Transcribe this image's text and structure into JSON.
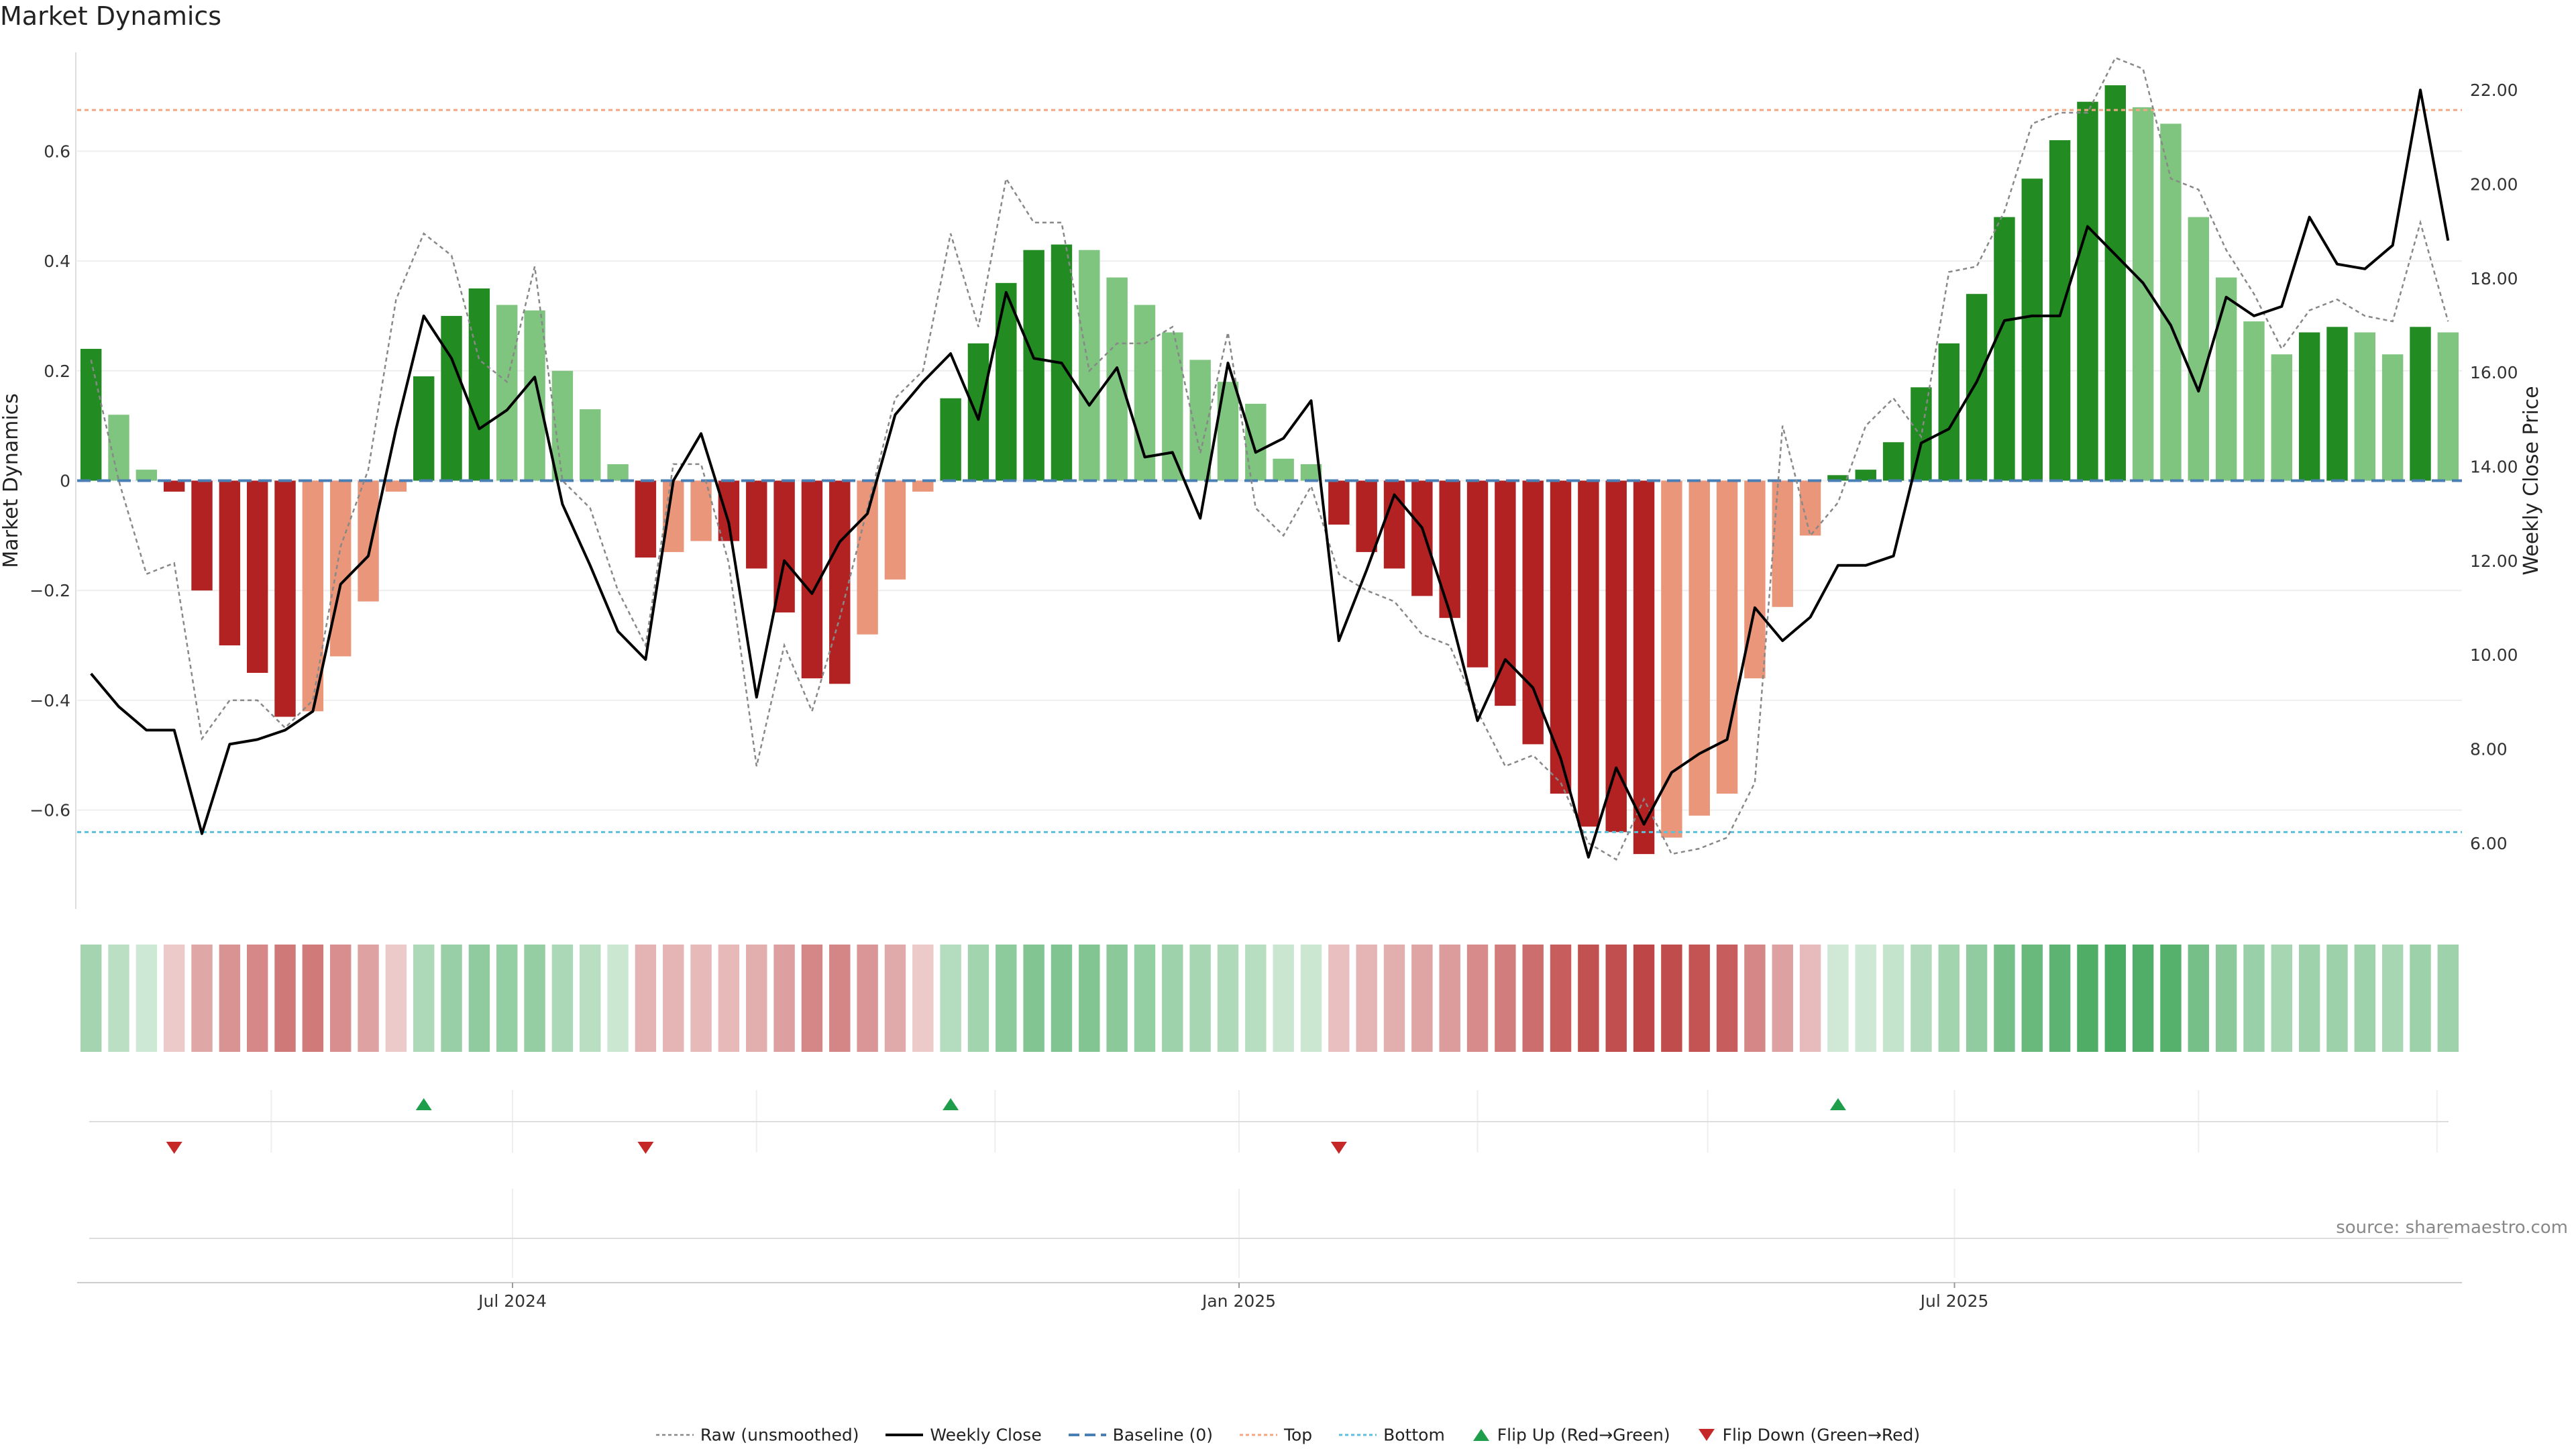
{
  "title": "Market Dynamics",
  "source": "source: sharemaestro.com",
  "colors": {
    "pos_strong": "#228B22",
    "pos_weak": "#7FC47F",
    "neg_strong": "#B22222",
    "neg_weak": "#E9967A",
    "close": "#000000",
    "raw": "#888888",
    "baseline": "#4A7FB5",
    "top": "#F4A582",
    "bottom": "#5BC0DE",
    "flip_up": "#1E9E4A",
    "flip_down": "#C62828"
  },
  "legend": {
    "raw": "Raw (unsmoothed)",
    "close": "Weekly Close",
    "baseline": "Baseline (0)",
    "top": "Top",
    "bottom": "Bottom",
    "flip_up": "Flip Up (Red→Green)",
    "flip_down": "Flip Down (Green→Red)"
  },
  "chart_data": {
    "type": "bar",
    "ylabel": "Market Dynamics",
    "y2label": "Weekly Close Price",
    "ylim": [
      -0.78,
      0.78
    ],
    "y2lim": [
      4.6,
      22.8
    ],
    "yticks": [
      -0.6,
      -0.4,
      -0.2,
      0,
      0.2,
      0.4,
      0.6
    ],
    "ytick_labels": [
      "−0.6",
      "−0.4",
      "−0.2",
      "0",
      "0.2",
      "0.4",
      "0.6"
    ],
    "y2ticks": [
      6,
      8,
      10,
      12,
      14,
      16,
      18,
      20,
      22
    ],
    "y2tick_labels": [
      "6.00",
      "8.00",
      "10.00",
      "12.00",
      "14.00",
      "16.00",
      "18.00",
      "20.00",
      "22.00"
    ],
    "xtick_labels": [
      "Jul 2024",
      "Jan 2025",
      "Jul 2025"
    ],
    "xtick_index": [
      15.2,
      41.4,
      67.2
    ],
    "top": 0.675,
    "bottom": -0.64,
    "baseline": 0,
    "momentum": [
      0.24,
      0.12,
      0.02,
      -0.02,
      -0.2,
      -0.3,
      -0.35,
      -0.43,
      -0.42,
      -0.32,
      -0.22,
      -0.02,
      0.19,
      0.3,
      0.35,
      0.32,
      0.31,
      0.2,
      0.13,
      0.03,
      -0.14,
      -0.13,
      -0.11,
      -0.11,
      -0.16,
      -0.24,
      -0.36,
      -0.37,
      -0.28,
      -0.18,
      -0.02,
      0.15,
      0.25,
      0.36,
      0.42,
      0.43,
      0.42,
      0.37,
      0.32,
      0.27,
      0.22,
      0.18,
      0.14,
      0.04,
      0.03,
      -0.08,
      -0.13,
      -0.16,
      -0.21,
      -0.25,
      -0.34,
      -0.41,
      -0.48,
      -0.57,
      -0.63,
      -0.64,
      -0.68,
      -0.65,
      -0.61,
      -0.57,
      -0.36,
      -0.23,
      -0.1,
      0.01,
      0.02,
      0.07,
      0.17,
      0.25,
      0.34,
      0.48,
      0.55,
      0.62,
      0.69,
      0.72,
      0.68,
      0.65,
      0.48,
      0.37,
      0.29,
      0.23,
      0.27,
      0.28,
      0.27,
      0.23,
      0.28,
      0.27
    ],
    "raw": [
      0.22,
      0.0,
      -0.17,
      -0.15,
      -0.47,
      -0.4,
      -0.4,
      -0.45,
      -0.4,
      -0.12,
      0.02,
      0.33,
      0.45,
      0.41,
      0.22,
      0.18,
      0.39,
      0.0,
      -0.05,
      -0.2,
      -0.3,
      0.03,
      0.03,
      -0.15,
      -0.52,
      -0.3,
      -0.42,
      -0.25,
      -0.05,
      0.15,
      0.2,
      0.45,
      0.28,
      0.55,
      0.47,
      0.47,
      0.2,
      0.25,
      0.25,
      0.28,
      0.05,
      0.27,
      -0.05,
      -0.1,
      -0.01,
      -0.17,
      -0.2,
      -0.22,
      -0.28,
      -0.3,
      -0.42,
      -0.52,
      -0.5,
      -0.55,
      -0.66,
      -0.69,
      -0.58,
      -0.68,
      -0.67,
      -0.65,
      -0.55,
      0.1,
      -0.1,
      -0.04,
      0.1,
      0.15,
      0.08,
      0.38,
      0.39,
      0.49,
      0.65,
      0.67,
      0.67,
      0.77,
      0.75,
      0.55,
      0.53,
      0.42,
      0.34,
      0.24,
      0.31,
      0.33,
      0.3,
      0.29,
      0.47,
      0.29
    ],
    "close": [
      9.6,
      8.9,
      8.4,
      8.4,
      6.2,
      8.1,
      8.2,
      8.4,
      8.8,
      11.5,
      12.1,
      14.8,
      17.2,
      16.3,
      14.8,
      15.2,
      15.9,
      13.2,
      11.9,
      10.5,
      9.9,
      13.7,
      14.7,
      12.8,
      9.1,
      12.0,
      11.3,
      12.4,
      13.0,
      15.1,
      15.8,
      16.4,
      15.0,
      17.7,
      16.3,
      16.2,
      15.3,
      16.1,
      14.2,
      14.3,
      12.9,
      16.2,
      14.3,
      14.6,
      15.4,
      10.3,
      11.8,
      13.4,
      12.7,
      10.9,
      8.6,
      9.9,
      9.3,
      7.8,
      5.7,
      7.6,
      6.4,
      7.5,
      7.9,
      8.2,
      11.0,
      10.3,
      10.8,
      11.9,
      11.9,
      12.1,
      14.5,
      14.8,
      15.8,
      17.1,
      17.2,
      17.2,
      19.1,
      18.5,
      17.9,
      17.0,
      15.6,
      17.6,
      17.2,
      17.4,
      19.3,
      18.3,
      18.2,
      18.7,
      22.0,
      18.8
    ],
    "flip_up": [
      12,
      31,
      63
    ],
    "flip_down": [
      3,
      20,
      45
    ]
  }
}
